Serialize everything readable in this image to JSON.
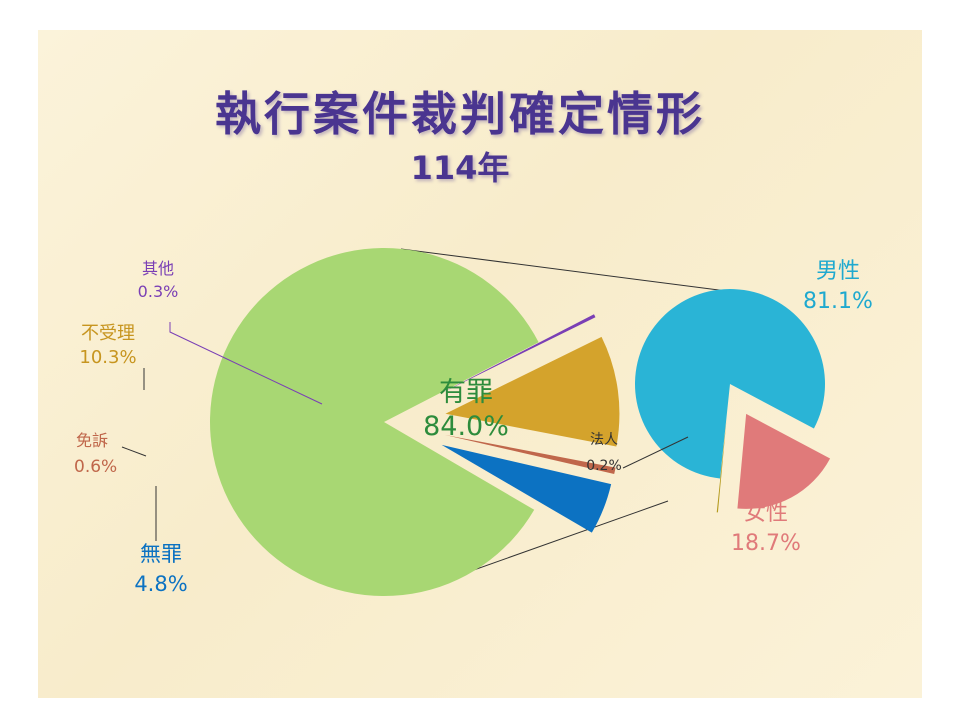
{
  "title": "執行案件裁判確定情形",
  "subtitle": "114年",
  "chart_data": [
    {
      "type": "pie",
      "slices": [
        {
          "label": "有罪",
          "value_text": "84.0%",
          "value": 84.0,
          "color": "#a8d773"
        },
        {
          "label": "其他",
          "value_text": "0.3%",
          "value": 0.3,
          "color": "#7a3fb5"
        },
        {
          "label": "不受理",
          "value_text": "10.3%",
          "value": 10.3,
          "color": "#d4a32c"
        },
        {
          "label": "免訴",
          "value_text": "0.6%",
          "value": 0.6,
          "color": "#c0674b"
        },
        {
          "label": "無罪",
          "value_text": "4.8%",
          "value": 4.8,
          "color": "#0c72c2"
        }
      ]
    },
    {
      "type": "pie",
      "parent_slice": "有罪",
      "slices": [
        {
          "label": "男性",
          "value_text": "81.1%",
          "value": 81.1,
          "color": "#2ab4d6"
        },
        {
          "label": "女性",
          "value_text": "18.7%",
          "value": 18.7,
          "color": "#e07a7a"
        },
        {
          "label": "法人",
          "value_text": "0.2%",
          "value": 0.2,
          "color": "#b49a1e"
        }
      ]
    }
  ]
}
